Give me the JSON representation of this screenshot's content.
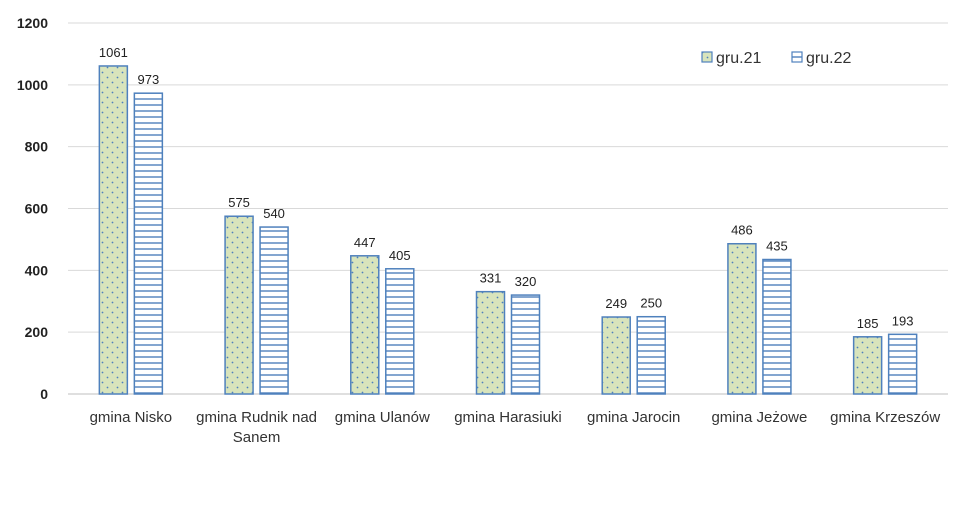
{
  "chart_data": {
    "type": "bar",
    "categories": [
      [
        "gmina Nisko"
      ],
      [
        "gmina Rudnik nad",
        "Sanem"
      ],
      [
        "gmina Ulanów"
      ],
      [
        "gmina Harasiuki"
      ],
      [
        "gmina Jarocin"
      ],
      [
        "gmina Jeżowe"
      ],
      [
        "gmina Krzeszów"
      ]
    ],
    "series": [
      {
        "name": "gru.21",
        "values": [
          1061,
          575,
          447,
          331,
          249,
          486,
          185
        ],
        "pattern": "dots",
        "fill": "#d8e4bc",
        "stroke": "#4f81bd"
      },
      {
        "name": "gru.22",
        "values": [
          973,
          540,
          405,
          320,
          250,
          435,
          193
        ],
        "pattern": "horizontal-lines",
        "fill": "#ffffff",
        "stroke": "#4f81bd"
      }
    ],
    "ylim": [
      0,
      1200
    ],
    "yticks": [
      0,
      200,
      400,
      600,
      800,
      1000,
      1200
    ],
    "grid": true,
    "legend": "top-right",
    "gridColor": "#d9d9d9"
  }
}
